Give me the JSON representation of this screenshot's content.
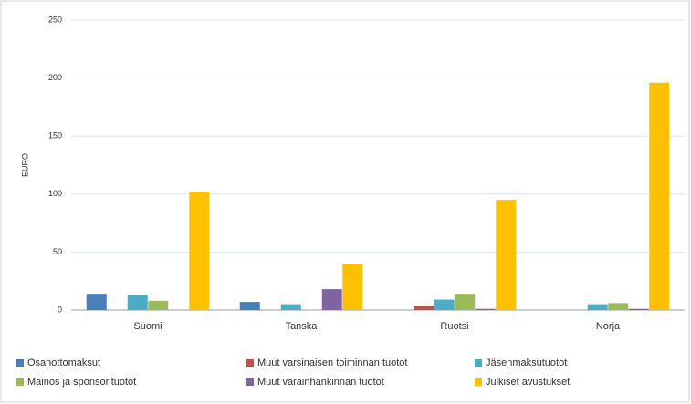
{
  "chart_data": {
    "type": "bar",
    "y_label": "EURO",
    "categories": [
      "Suomi",
      "Tanska",
      "Ruotsi",
      "Norja"
    ],
    "series": [
      {
        "name": "Osanottomaksut",
        "color": "#4a7ebb",
        "values": [
          14,
          7,
          0,
          0
        ]
      },
      {
        "name": "Muut varsinaisen toiminnan tuotot",
        "color": "#c0504d",
        "values": [
          0,
          0,
          4,
          0
        ]
      },
      {
        "name": "Jäsenmaksutuotot",
        "color": "#4bacc6",
        "values": [
          13,
          5,
          9,
          5
        ]
      },
      {
        "name": "Mainos ja sponsorituotot",
        "color": "#9bbb59",
        "values": [
          8,
          0,
          14,
          6
        ]
      },
      {
        "name": "Muut varainhankinnan tuotot",
        "color": "#8064a2",
        "values": [
          0,
          18,
          1,
          1
        ]
      },
      {
        "name": "Julkiset avustukset",
        "color": "#ffc000",
        "values": [
          102,
          40,
          95,
          196
        ]
      }
    ],
    "ylim": [
      0,
      250
    ],
    "yticks": [
      0,
      50,
      100,
      150,
      200,
      250
    ],
    "grid": true
  }
}
